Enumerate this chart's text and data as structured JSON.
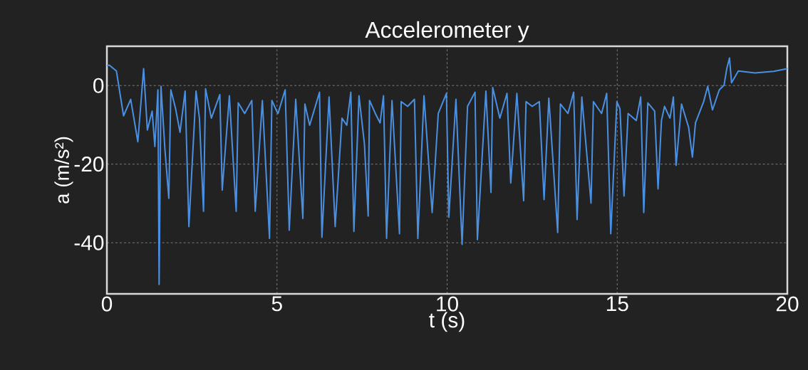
{
  "chart_data": {
    "type": "line",
    "title": "Accelerometer y",
    "xlabel": "t (s)",
    "ylabel": "a (m/s²)",
    "color": "#4a90e2",
    "grid": true,
    "xlim": [
      0,
      20
    ],
    "ylim": [
      -53,
      10
    ],
    "xticks": [
      0,
      5,
      10,
      15,
      20
    ],
    "yticks": [
      0,
      -20,
      -40
    ],
    "x": [
      0,
      0.07,
      0.28,
      0.49,
      0.7,
      0.91,
      1.08,
      1.19,
      1.33,
      1.41,
      1.5,
      1.535,
      1.59,
      1.71,
      1.82,
      1.88,
      2.02,
      2.15,
      2.3,
      2.41,
      2.62,
      2.72,
      2.84,
      2.9,
      3.07,
      3.32,
      3.39,
      3.6,
      3.8,
      3.86,
      4.05,
      4.26,
      4.36,
      4.57,
      4.78,
      4.85,
      4.99,
      5.03,
      5.24,
      5.36,
      5.55,
      5.76,
      5.82,
      5.96,
      6.25,
      6.32,
      6.53,
      6.71,
      6.91,
      7.05,
      7.17,
      7.26,
      7.41,
      7.57,
      7.68,
      7.72,
      7.89,
      8.03,
      8.13,
      8.22,
      8.38,
      8.6,
      8.65,
      8.84,
      9.04,
      9.14,
      9.32,
      9.56,
      9.74,
      9.98,
      10.05,
      10.26,
      10.44,
      10.6,
      10.82,
      10.89,
      11.14,
      11.29,
      11.34,
      11.55,
      11.76,
      11.87,
      12.05,
      12.25,
      12.32,
      12.5,
      12.71,
      12.85,
      12.99,
      13.25,
      13.33,
      13.55,
      13.72,
      13.82,
      13.96,
      14.23,
      14.3,
      14.54,
      14.69,
      14.81,
      14.99,
      15.08,
      15.2,
      15.32,
      15.56,
      15.69,
      15.78,
      15.9,
      16.1,
      16.2,
      16.3,
      16.39,
      16.55,
      16.65,
      16.73,
      16.89,
      17.1,
      17.21,
      17.3,
      17.54,
      17.66,
      17.8,
      18,
      18.14,
      18.22,
      18.3,
      18.36,
      18.56,
      19.05,
      19.6,
      20
    ],
    "values": [
      5,
      5.2,
      3.7,
      -7.7,
      -3.5,
      -14.3,
      4.3,
      -11.3,
      -6.5,
      -15.5,
      -1.1,
      -50.6,
      -0.2,
      -16.7,
      -28.7,
      -1.1,
      -5.9,
      -11.9,
      -1.4,
      -35.9,
      -1.4,
      -8.3,
      -32,
      -0.8,
      -8.3,
      -2.3,
      -26.6,
      -2.6,
      -32,
      -4.4,
      -7.1,
      -3.8,
      -32,
      -3.8,
      -38.9,
      -3.8,
      -6.5,
      -7.1,
      -1.1,
      -36.8,
      -3.5,
      -33.8,
      -4.7,
      -10.1,
      -1.7,
      -38.6,
      -2.9,
      -35.9,
      -8.3,
      -10.1,
      -1.7,
      -37.1,
      -2.6,
      -14.9,
      -33.2,
      -3.8,
      -7.1,
      -9.5,
      -2.6,
      -38.9,
      -3.8,
      -37.7,
      -4.1,
      -5.3,
      -3.5,
      -38.9,
      -2.6,
      -32.3,
      -7.1,
      -2,
      -33.5,
      -3.5,
      -40.4,
      -5.3,
      -1.7,
      -39.2,
      -1.4,
      -27.2,
      -0.5,
      -8.3,
      -2,
      -24.8,
      -2,
      -29.3,
      -4.1,
      -5.3,
      -4.1,
      -29,
      -3.2,
      -37.4,
      -4.7,
      -7.1,
      -1.7,
      -34.1,
      -2.9,
      -29.9,
      -4.1,
      -7.1,
      -2,
      -37.7,
      -4.1,
      -5.9,
      -28.1,
      -7.1,
      -8.9,
      -2.9,
      -32.3,
      -4.4,
      -6.5,
      -26.3,
      -8.9,
      -5.3,
      -8.3,
      -2.9,
      -20.3,
      -4.7,
      -10.7,
      -18.2,
      -9.5,
      -4.1,
      -0.2,
      -6.2,
      -1.1,
      0.1,
      4.3,
      7,
      0.7,
      3.7,
      3.2,
      3.6,
      4.3
    ]
  }
}
